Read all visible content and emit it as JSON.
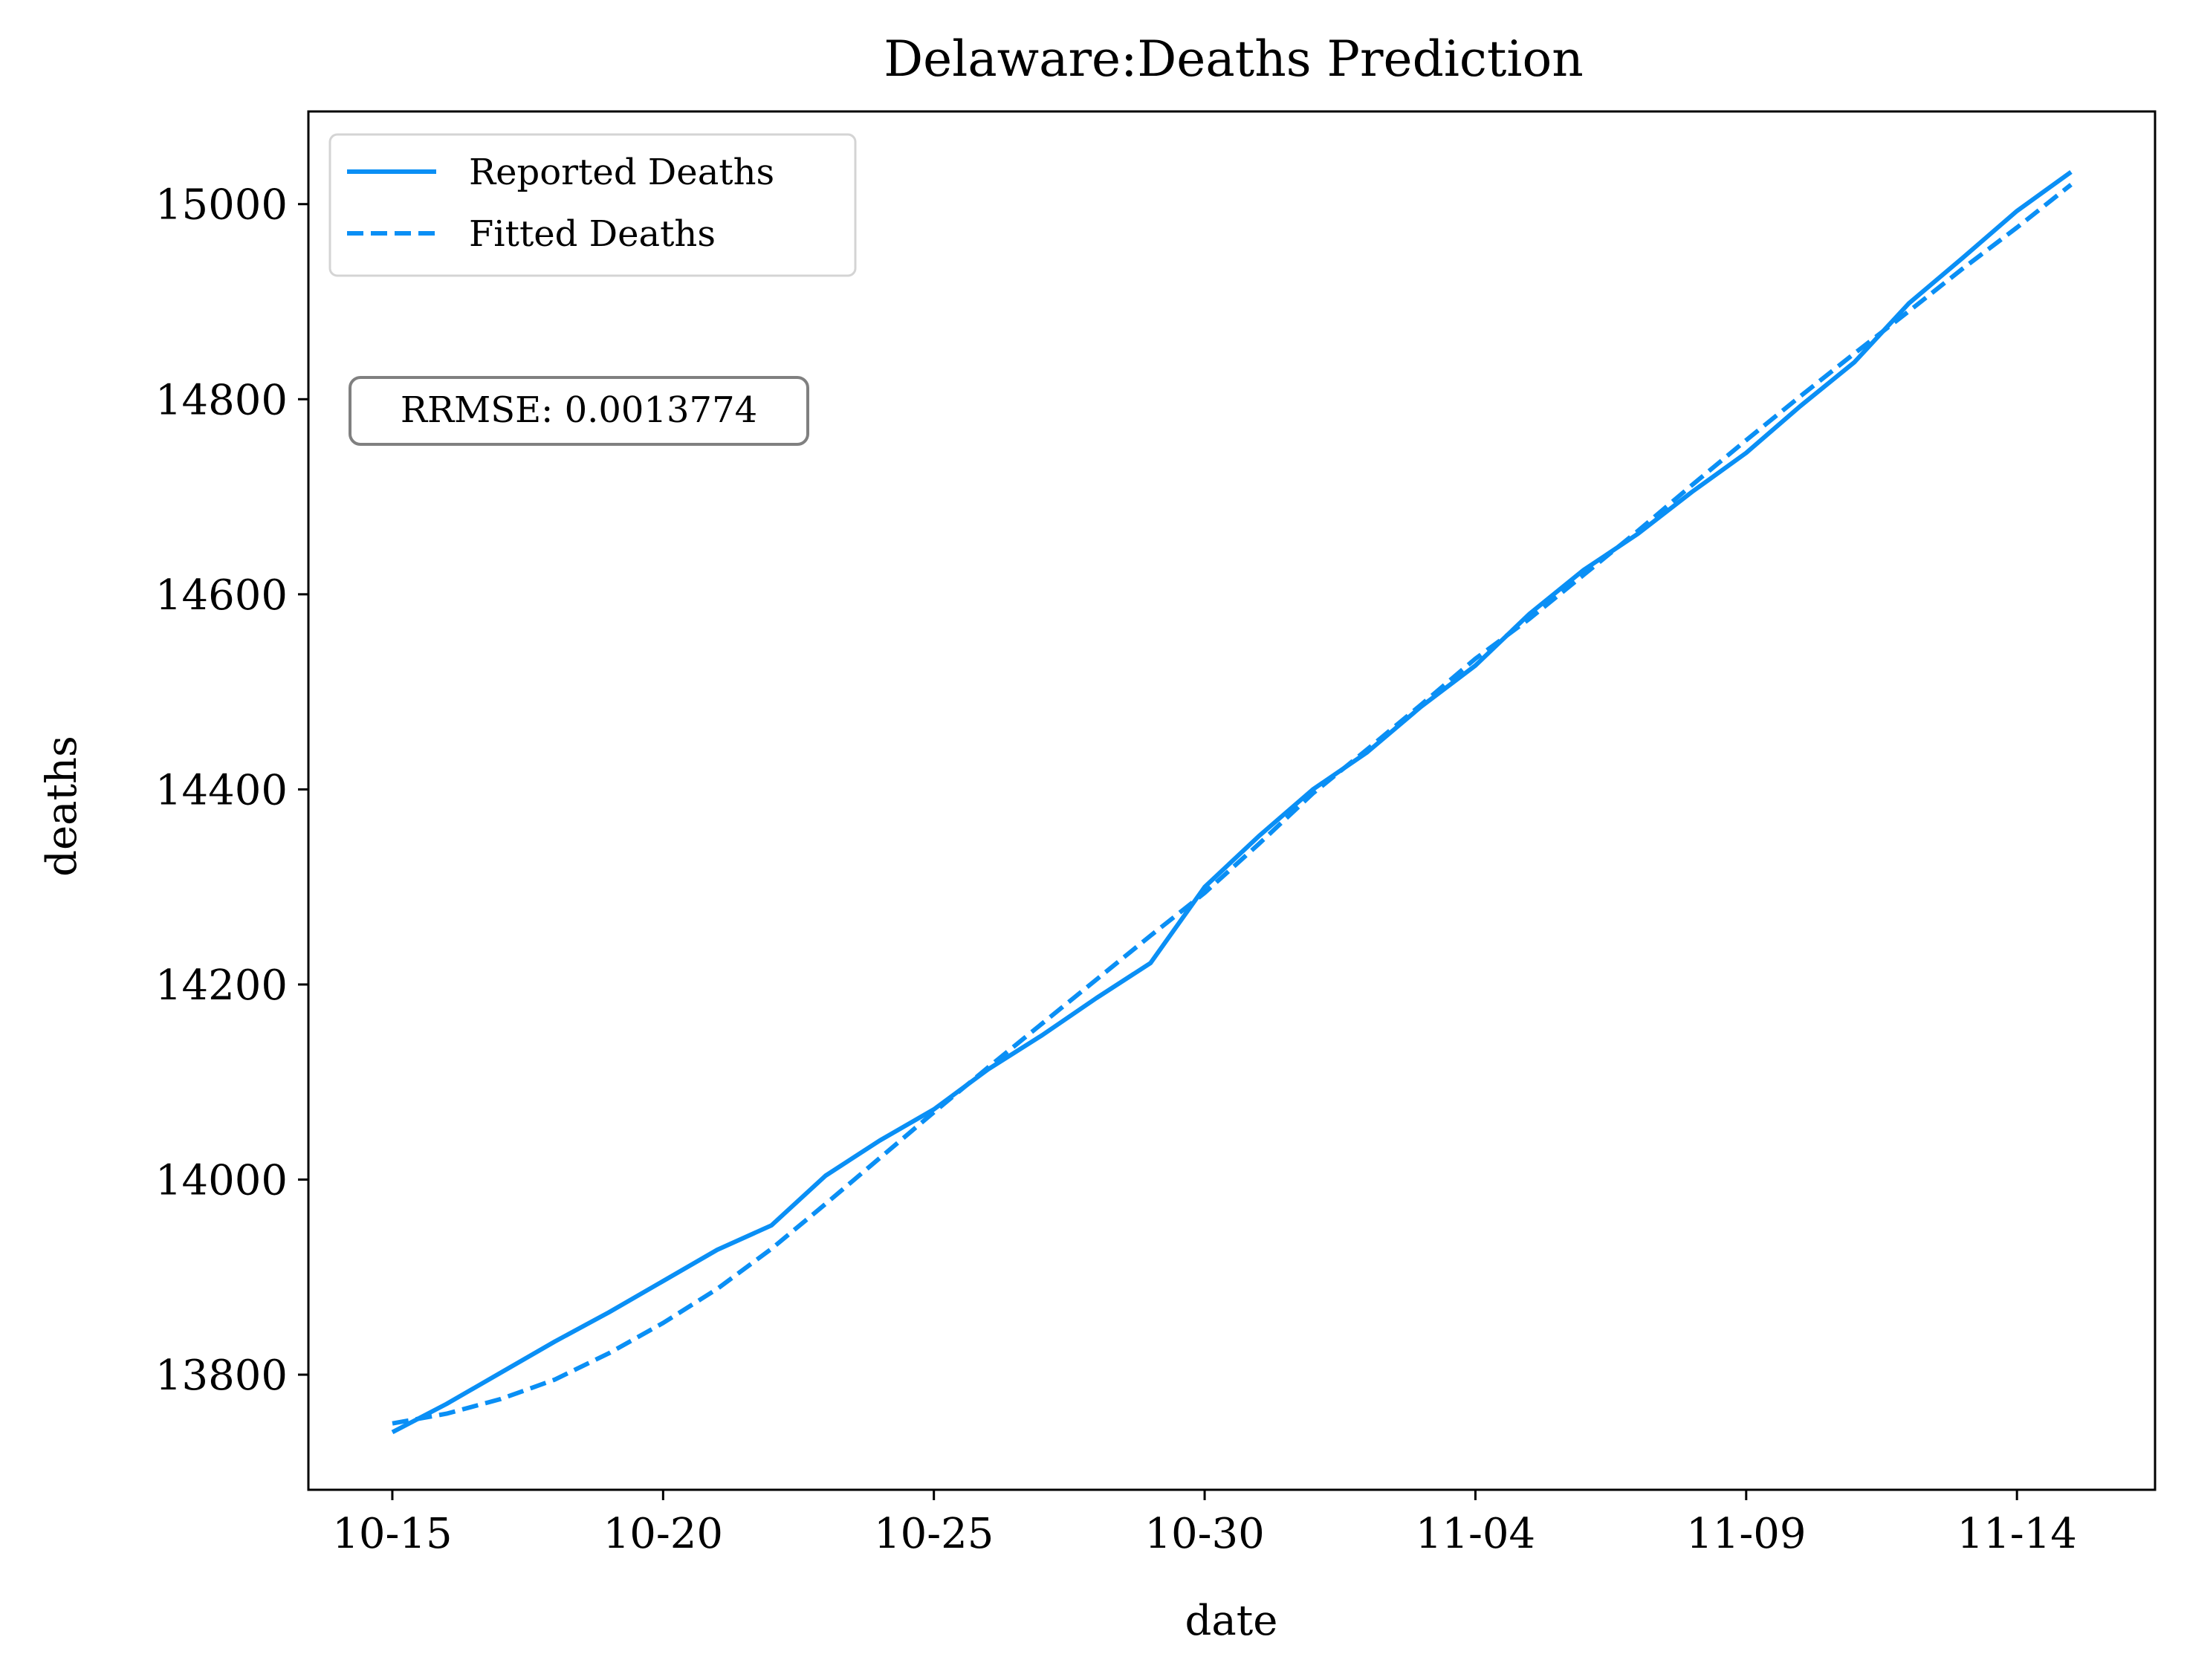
{
  "chart_data": {
    "type": "line",
    "title": "Delaware:Deaths Prediction",
    "xlabel": "date",
    "ylabel": "deaths",
    "x": [
      "10-15",
      "10-16",
      "10-17",
      "10-18",
      "10-19",
      "10-20",
      "10-21",
      "10-22",
      "10-23",
      "10-24",
      "10-25",
      "10-26",
      "10-27",
      "10-28",
      "10-29",
      "10-30",
      "10-31",
      "11-01",
      "11-02",
      "11-03",
      "11-04",
      "11-05",
      "11-06",
      "11-07",
      "11-08",
      "11-09",
      "11-10",
      "11-11",
      "11-12",
      "11-13",
      "11-14",
      "11-15"
    ],
    "xticks": [
      "10-15",
      "10-20",
      "10-25",
      "10-30",
      "11-04",
      "11-09",
      "11-14"
    ],
    "yticks": [
      13800,
      14000,
      14200,
      14400,
      14600,
      14800,
      15000
    ],
    "ylim": [
      13682,
      15095
    ],
    "xlim_days": [
      -1.55,
      32.55
    ],
    "series": [
      {
        "name": "Reported Deaths",
        "style": "solid",
        "color": "#0a8ff5",
        "values": [
          13741,
          13770,
          13802,
          13834,
          13864,
          13896,
          13928,
          13953,
          14004,
          14040,
          14072,
          14113,
          14148,
          14186,
          14222,
          14300,
          14352,
          14400,
          14438,
          14485,
          14527,
          14580,
          14625,
          14662,
          14705,
          14745,
          14793,
          14838,
          14898,
          14945,
          14993,
          15033
        ]
      },
      {
        "name": "Fitted Deaths",
        "style": "dashed",
        "color": "#0a8ff5",
        "values": [
          13750,
          13760,
          13775,
          13795,
          13822,
          13853,
          13888,
          13929,
          13975,
          14022,
          14069,
          14115,
          14160,
          14205,
          14250,
          14294,
          14344,
          14396,
          14441,
          14487,
          14534,
          14575,
          14620,
          14665,
          14712,
          14758,
          14803,
          14847,
          14890,
          14934,
          14976,
          15020
        ]
      }
    ],
    "legend": "top-left",
    "annotation": "RRMSE: 0.0013774",
    "grid": false
  }
}
